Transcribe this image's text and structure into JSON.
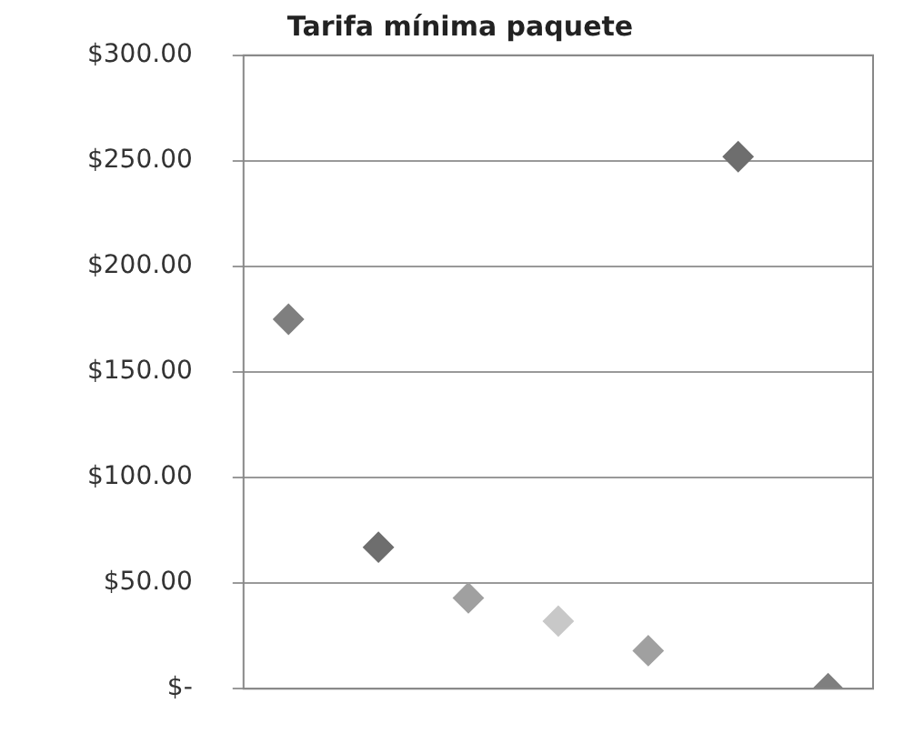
{
  "chart_data": {
    "type": "scatter",
    "title": "Tarifa mínima paquete",
    "categories": [
      null,
      null,
      null,
      null,
      null,
      null,
      null
    ],
    "values": [
      175,
      67,
      43,
      32,
      18,
      252,
      0
    ],
    "colors": [
      "#7f7f7f",
      "#6e6e6e",
      "#a0a0a0",
      "#c8c8c8",
      "#a0a0a0",
      "#6e6e6e",
      "#7f7f7f"
    ],
    "ylim": [
      0,
      300
    ],
    "yticks": [
      {
        "value": 0,
        "label": "$-"
      },
      {
        "value": 50,
        "label": "$50.00"
      },
      {
        "value": 100,
        "label": "$100.00"
      },
      {
        "value": 150,
        "label": "$150.00"
      },
      {
        "value": 200,
        "label": "$200.00"
      },
      {
        "value": 250,
        "label": "$250.00"
      },
      {
        "value": 300,
        "label": "$300.00"
      }
    ],
    "grid": "y",
    "marker": "diamond",
    "legend": false,
    "tick_labels": "y"
  }
}
